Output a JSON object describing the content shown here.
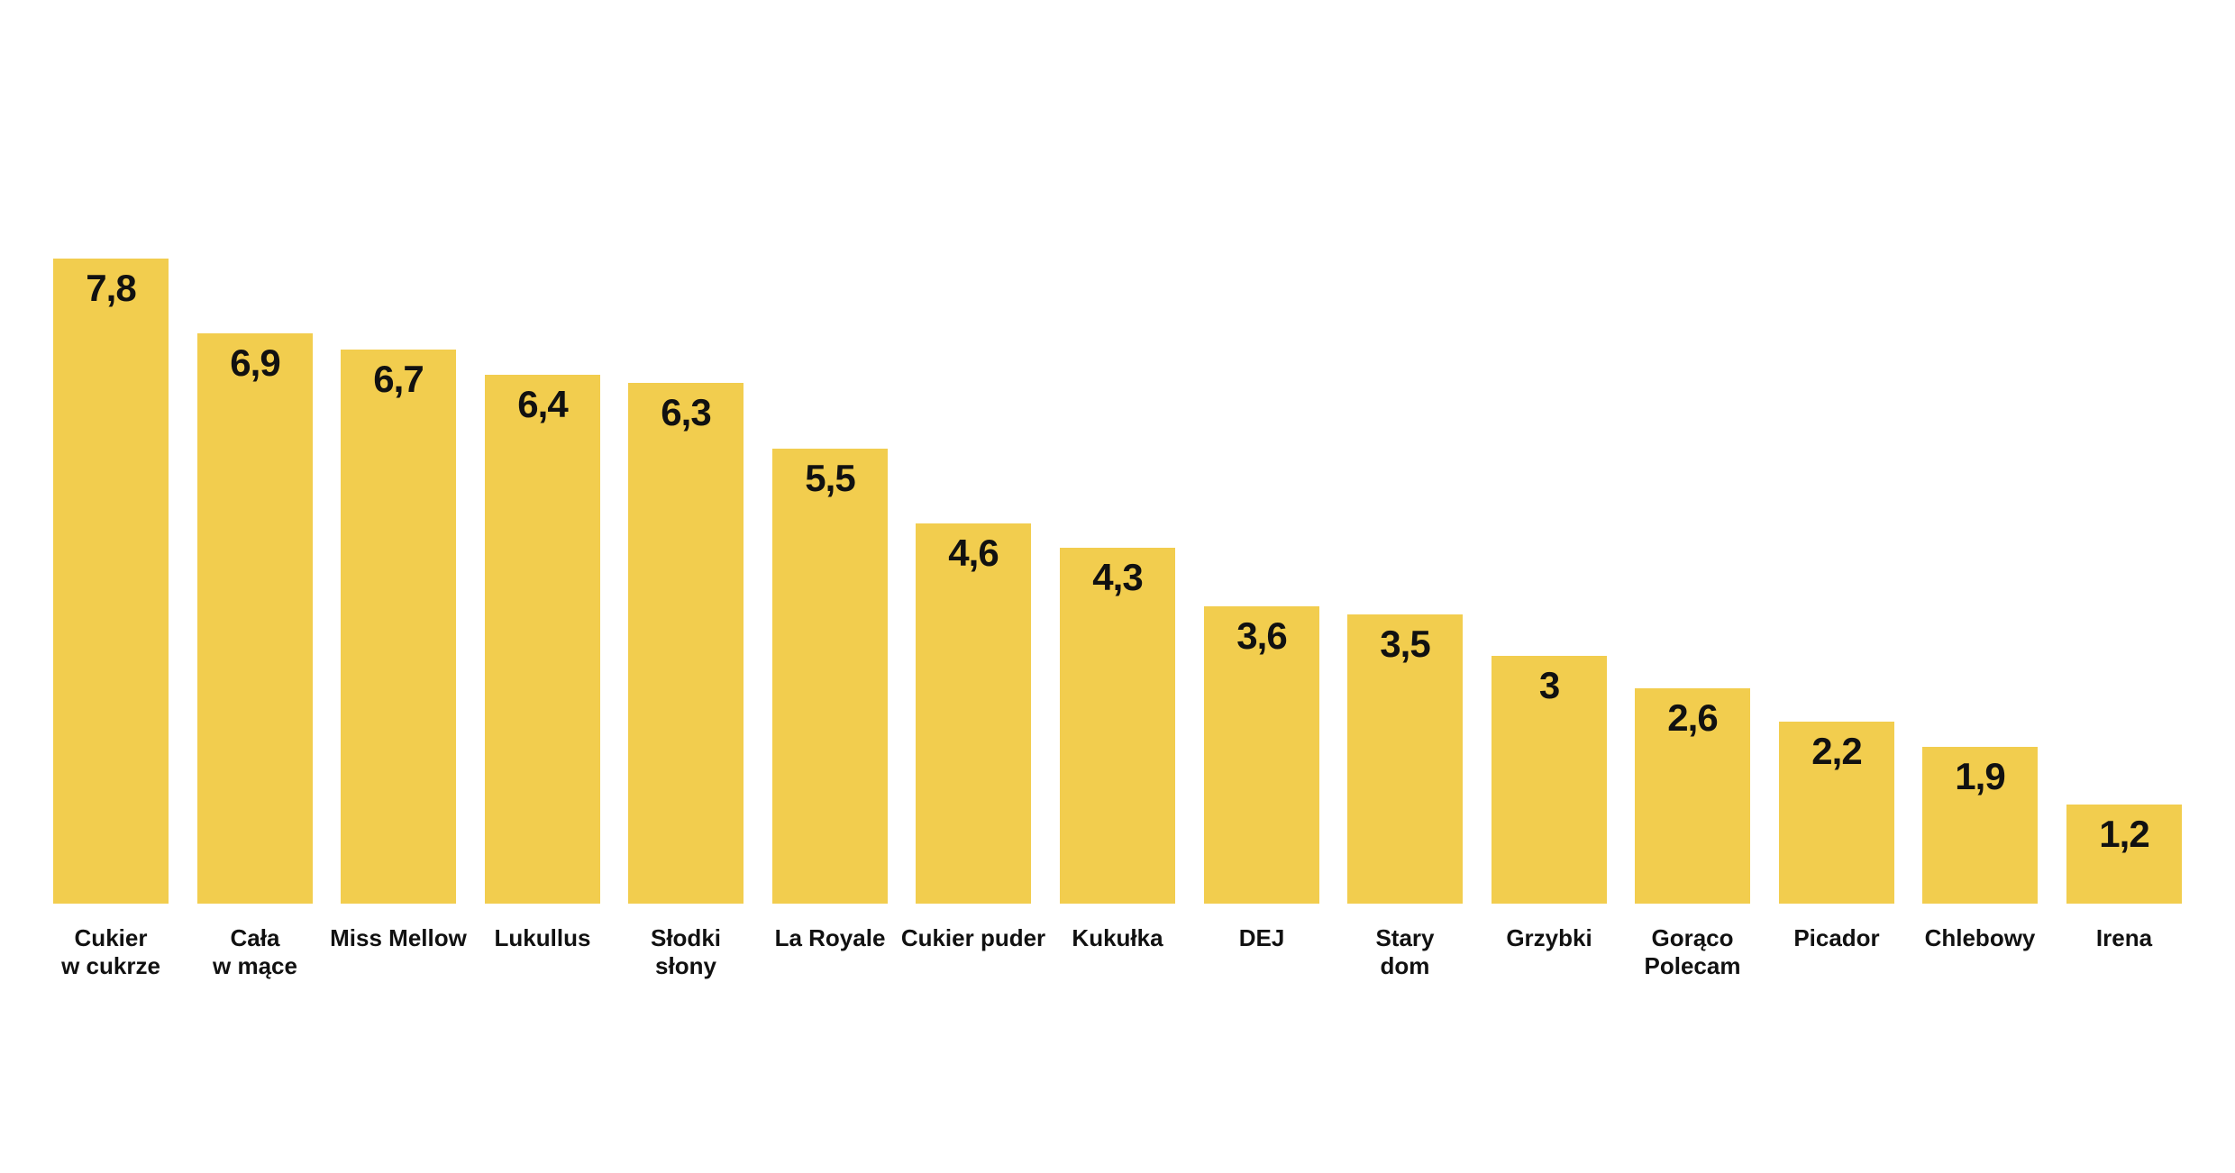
{
  "chart_data": {
    "type": "bar",
    "title": "",
    "xlabel": "",
    "ylabel": "",
    "ylim": [
      0,
      8.5
    ],
    "grid": false,
    "legend": false,
    "bar_color": "#F2CD4E",
    "label_color": "#111111",
    "background_color": "#FFFFFF",
    "decimal_separator": ",",
    "categories": [
      "Cukier\nw cukrze",
      "Cała\nw mące",
      "Miss Mellow",
      "Lukullus",
      "Słodki\nsłony",
      "La Royale",
      "Cukier puder",
      "Kukułka",
      "DEJ",
      "Stary\ndom",
      "Grzybki",
      "Gorąco\nPolecam",
      "Picador",
      "Chlebowy",
      "Irena"
    ],
    "values": [
      7.8,
      6.9,
      6.7,
      6.4,
      6.3,
      5.5,
      4.6,
      4.3,
      3.6,
      3.5,
      3,
      2.6,
      2.2,
      1.9,
      1.2
    ],
    "value_labels": [
      "7,8",
      "6,9",
      "6,7",
      "6,4",
      "6,3",
      "5,5",
      "4,6",
      "4,3",
      "3,6",
      "3,5",
      "3",
      "2,6",
      "2,2",
      "1,9",
      "1,2"
    ]
  }
}
